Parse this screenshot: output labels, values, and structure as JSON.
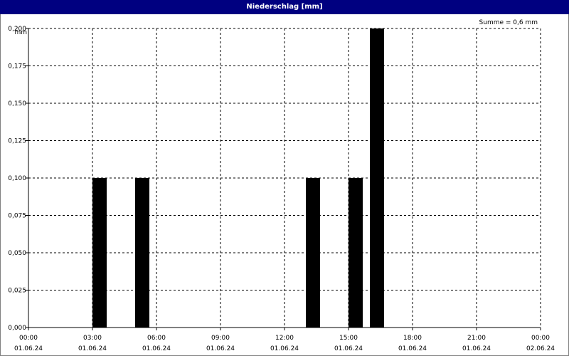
{
  "window": {
    "title": "Niederschlag [mm]"
  },
  "chart_data": {
    "type": "bar",
    "title": "Niederschlag [mm]",
    "ylabel": "mm",
    "annotation": "Summe = 0,6 mm",
    "ylim": [
      0,
      0.2
    ],
    "y_ticks": [
      "0,000",
      "0,025",
      "0,050",
      "0,075",
      "0,100",
      "0,125",
      "0,150",
      "0,175",
      "0,200"
    ],
    "x_ticks": [
      {
        "time": "00:00",
        "date": "01.06.24"
      },
      {
        "time": "03:00",
        "date": "01.06.24"
      },
      {
        "time": "06:00",
        "date": "01.06.24"
      },
      {
        "time": "09:00",
        "date": "01.06.24"
      },
      {
        "time": "12:00",
        "date": "01.06.24"
      },
      {
        "time": "15:00",
        "date": "01.06.24"
      },
      {
        "time": "18:00",
        "date": "01.06.24"
      },
      {
        "time": "21:00",
        "date": "01.06.24"
      },
      {
        "time": "00:00",
        "date": "02.06.24"
      }
    ],
    "xlim": [
      "01.06.24 00:00",
      "02.06.24 00:00"
    ],
    "grid": true,
    "bars": [
      {
        "start": "03:00",
        "end": "03:40",
        "value": 0.1
      },
      {
        "start": "05:00",
        "end": "05:40",
        "value": 0.1
      },
      {
        "start": "13:00",
        "end": "13:40",
        "value": 0.1
      },
      {
        "start": "15:00",
        "end": "15:40",
        "value": 0.1
      },
      {
        "start": "16:00",
        "end": "16:40",
        "value": 0.2
      }
    ],
    "bar_color": "#000000"
  }
}
